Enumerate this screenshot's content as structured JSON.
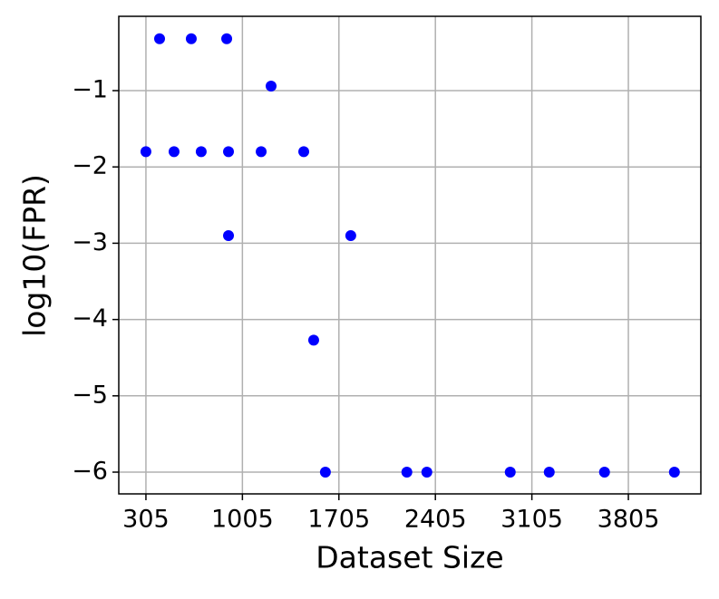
{
  "chart_data": {
    "type": "scatter",
    "x_label": "Dataset Size",
    "y_label": "log10(FPR)",
    "x": [
      305,
      404,
      509,
      634,
      706,
      891,
      904,
      904,
      1141,
      1213,
      1450,
      1522,
      1607,
      1791,
      2198,
      2343,
      2948,
      3231,
      3632,
      4139
    ],
    "values": [
      -1.8,
      -0.32,
      -1.8,
      -0.32,
      -1.8,
      -0.32,
      -1.8,
      -2.9,
      -1.8,
      -0.94,
      -1.8,
      -4.27,
      -6,
      -2.9,
      -6,
      -6,
      -6,
      -6,
      -6,
      -6
    ],
    "color": "#0000ff",
    "xlim": [
      108,
      4331
    ],
    "ylim": [
      -6.285,
      -0.026
    ],
    "xticks": [
      305,
      1005,
      1705,
      2405,
      3105,
      3805
    ],
    "yticks": [
      {
        "value": -1,
        "label": "−1"
      },
      {
        "value": -2,
        "label": "−2"
      },
      {
        "value": -3,
        "label": "−3"
      },
      {
        "value": -4,
        "label": "−4"
      },
      {
        "value": -5,
        "label": "−5"
      },
      {
        "value": -6,
        "label": "−6"
      }
    ],
    "grid": true
  }
}
